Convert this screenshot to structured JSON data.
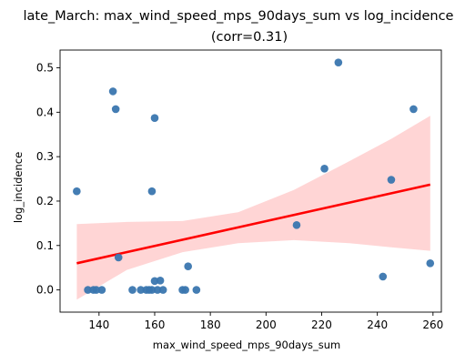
{
  "chart_data": {
    "type": "scatter",
    "title": "late_March: max_wind_speed_mps_90days_sum vs log_incidence",
    "subtitle": "(corr=0.31)",
    "xlabel": "max_wind_speed_mps_90days_sum",
    "ylabel": "log_incidence",
    "xlim": [
      126,
      263
    ],
    "ylim": [
      -0.05,
      0.54
    ],
    "xticks": [
      140,
      160,
      180,
      200,
      220,
      240,
      260
    ],
    "yticks": [
      0.0,
      0.1,
      0.2,
      0.3,
      0.4,
      0.5
    ],
    "grid": false,
    "colors": {
      "points": "#3a76af",
      "regression_line": "#ff0000",
      "confidence_band": "#ffb3b3"
    },
    "points": [
      {
        "x": 132,
        "y": 0.222
      },
      {
        "x": 136,
        "y": 0.0
      },
      {
        "x": 138,
        "y": 0.0
      },
      {
        "x": 139,
        "y": 0.0
      },
      {
        "x": 141,
        "y": 0.0
      },
      {
        "x": 145,
        "y": 0.447
      },
      {
        "x": 146,
        "y": 0.407
      },
      {
        "x": 147,
        "y": 0.073
      },
      {
        "x": 152,
        "y": 0.0
      },
      {
        "x": 155,
        "y": 0.0
      },
      {
        "x": 157,
        "y": 0.0
      },
      {
        "x": 158,
        "y": 0.0
      },
      {
        "x": 159,
        "y": 0.0
      },
      {
        "x": 159,
        "y": 0.222
      },
      {
        "x": 160,
        "y": 0.02
      },
      {
        "x": 160,
        "y": 0.387
      },
      {
        "x": 161,
        "y": 0.0
      },
      {
        "x": 162,
        "y": 0.021
      },
      {
        "x": 163,
        "y": 0.0
      },
      {
        "x": 170,
        "y": 0.0
      },
      {
        "x": 171,
        "y": 0.0
      },
      {
        "x": 172,
        "y": 0.053
      },
      {
        "x": 175,
        "y": 0.0
      },
      {
        "x": 211,
        "y": 0.146
      },
      {
        "x": 221,
        "y": 0.273
      },
      {
        "x": 226,
        "y": 0.512
      },
      {
        "x": 242,
        "y": 0.03
      },
      {
        "x": 245,
        "y": 0.248
      },
      {
        "x": 253,
        "y": 0.407
      },
      {
        "x": 259,
        "y": 0.06
      }
    ],
    "regression_line": {
      "x": [
        132,
        259
      ],
      "y": [
        0.06,
        0.237
      ]
    },
    "confidence_band": {
      "x": [
        132,
        150,
        170,
        190,
        210,
        230,
        245,
        259
      ],
      "lower": [
        -0.022,
        0.045,
        0.085,
        0.105,
        0.112,
        0.105,
        0.096,
        0.088
      ],
      "upper": [
        0.148,
        0.153,
        0.155,
        0.175,
        0.225,
        0.29,
        0.34,
        0.392
      ]
    }
  }
}
